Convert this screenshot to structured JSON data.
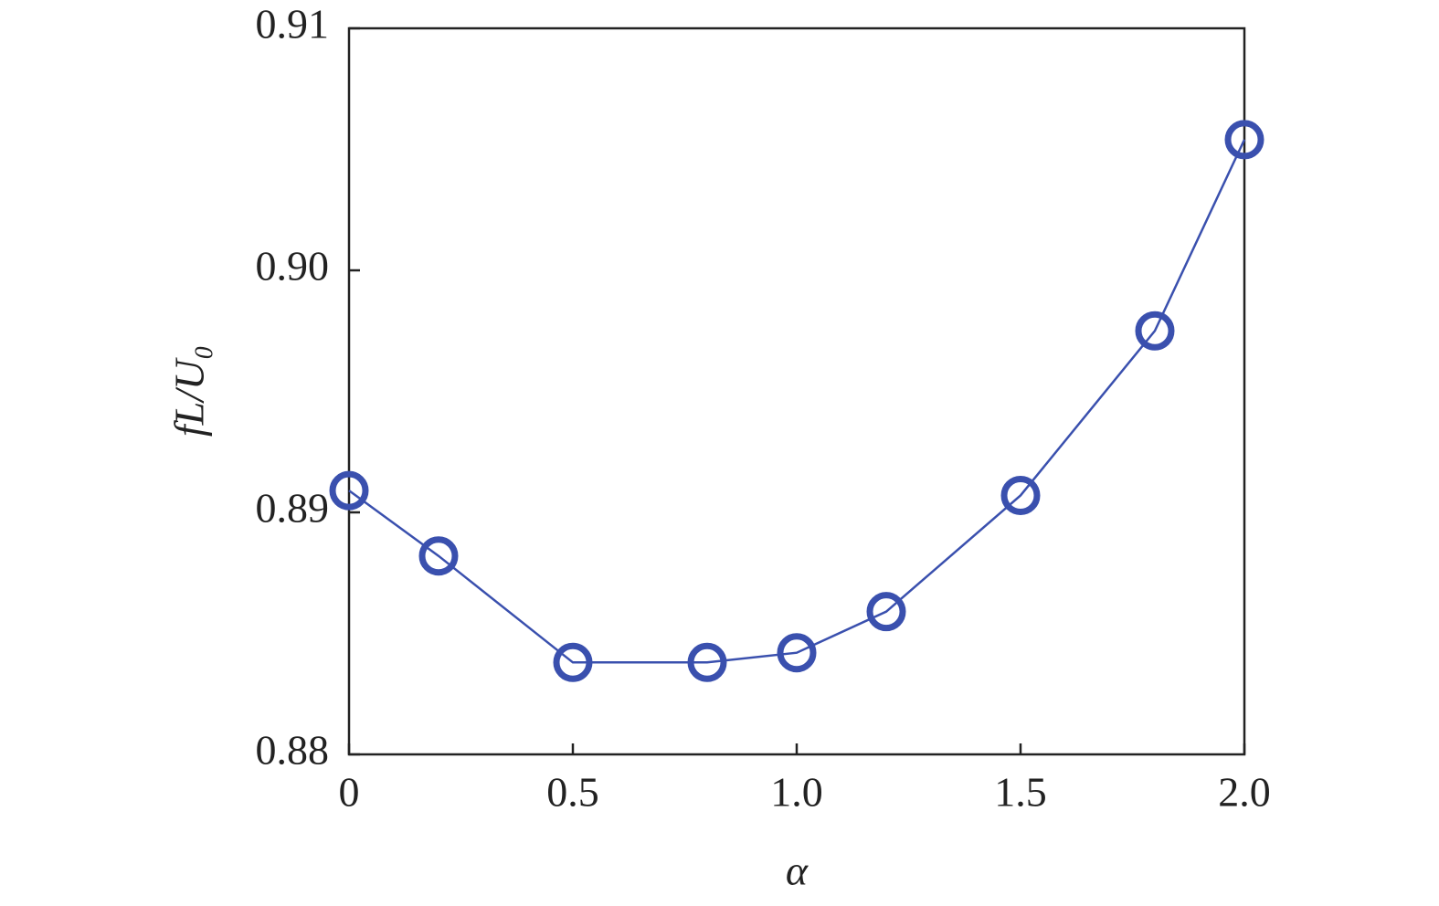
{
  "chart_data": {
    "type": "line",
    "x_label": "α",
    "y_label": "fL/U₀",
    "x": [
      0,
      0.2,
      0.5,
      0.8,
      1.0,
      1.2,
      1.5,
      1.8,
      2.0
    ],
    "series": [
      {
        "color": "#3a50ae",
        "values": [
          0.8909,
          0.8882,
          0.8838,
          0.8838,
          0.8842,
          0.8859,
          0.8907,
          0.8975,
          0.9054
        ]
      }
    ],
    "xlim": [
      0,
      2
    ],
    "ylim": [
      0.88,
      0.91
    ],
    "xticks": [
      0,
      0.5,
      {
        "value": 1,
        "label": "1.0"
      },
      1.5,
      {
        "value": 2,
        "label": "2.0"
      }
    ],
    "yticks": [
      0.88,
      0.89,
      {
        "value": 0.9,
        "label": "0.90"
      },
      0.91
    ]
  }
}
